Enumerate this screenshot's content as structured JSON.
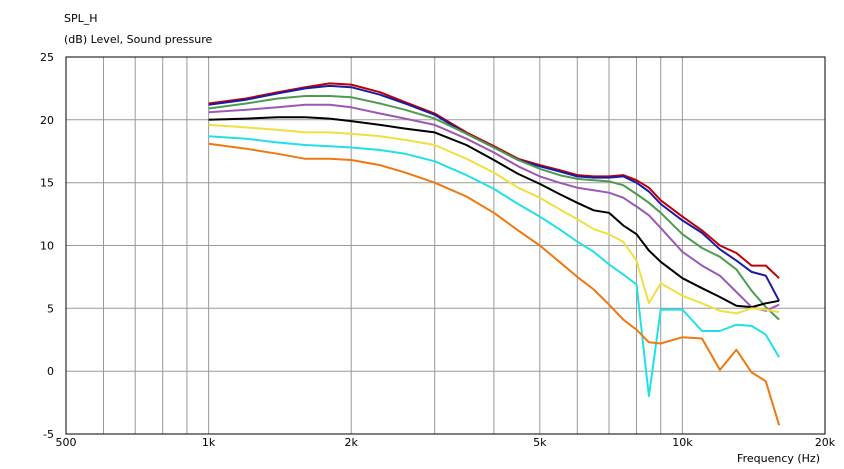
{
  "chart_data": {
    "type": "line",
    "title": "SPL_H",
    "ylabel": "(dB)  Level, Sound pressure",
    "xlabel": "Frequency  (Hz)",
    "x_scale": "log",
    "xlim": [
      500,
      20000
    ],
    "ylim": [
      -5,
      25
    ],
    "grid": true,
    "x_ticks": [
      {
        "value": 500,
        "label": "500"
      },
      {
        "value": 1000,
        "label": "1k"
      },
      {
        "value": 2000,
        "label": "2k"
      },
      {
        "value": 5000,
        "label": "5k"
      },
      {
        "value": 10000,
        "label": "10k"
      },
      {
        "value": 20000,
        "label": "20k"
      }
    ],
    "y_ticks": [
      {
        "value": 25,
        "label": "25"
      },
      {
        "value": 20,
        "label": "20"
      },
      {
        "value": 15,
        "label": "15"
      },
      {
        "value": 10,
        "label": "10"
      },
      {
        "value": 5,
        "label": "5"
      },
      {
        "value": 0,
        "label": "0"
      },
      {
        "value": -5,
        "label": "-5"
      }
    ],
    "series": [
      {
        "color": "#c00000",
        "points": [
          [
            1000,
            21.3
          ],
          [
            1200,
            21.7
          ],
          [
            1400,
            22.2
          ],
          [
            1600,
            22.6
          ],
          [
            1800,
            22.9
          ],
          [
            2000,
            22.8
          ],
          [
            2300,
            22.2
          ],
          [
            2600,
            21.4
          ],
          [
            3000,
            20.5
          ],
          [
            3500,
            19.0
          ],
          [
            4000,
            17.9
          ],
          [
            4500,
            16.9
          ],
          [
            5000,
            16.4
          ],
          [
            5500,
            16.0
          ],
          [
            6000,
            15.6
          ],
          [
            6500,
            15.5
          ],
          [
            7000,
            15.5
          ],
          [
            7500,
            15.6
          ],
          [
            8000,
            15.2
          ],
          [
            8500,
            14.6
          ],
          [
            9000,
            13.6
          ],
          [
            10000,
            12.3
          ],
          [
            11000,
            11.2
          ],
          [
            12000,
            10.0
          ],
          [
            13000,
            9.4
          ],
          [
            14000,
            8.4
          ],
          [
            15000,
            8.4
          ],
          [
            16000,
            7.4
          ]
        ]
      },
      {
        "color": "#1a1aa8",
        "points": [
          [
            1000,
            21.2
          ],
          [
            1200,
            21.6
          ],
          [
            1400,
            22.1
          ],
          [
            1600,
            22.5
          ],
          [
            1800,
            22.7
          ],
          [
            2000,
            22.6
          ],
          [
            2300,
            22.0
          ],
          [
            2600,
            21.3
          ],
          [
            3000,
            20.4
          ],
          [
            3500,
            18.9
          ],
          [
            4000,
            17.8
          ],
          [
            4500,
            16.8
          ],
          [
            5000,
            16.3
          ],
          [
            5500,
            15.9
          ],
          [
            6000,
            15.5
          ],
          [
            6500,
            15.4
          ],
          [
            7000,
            15.4
          ],
          [
            7500,
            15.5
          ],
          [
            8000,
            15.0
          ],
          [
            8500,
            14.3
          ],
          [
            9000,
            13.3
          ],
          [
            10000,
            12.0
          ],
          [
            11000,
            11.0
          ],
          [
            12000,
            9.7
          ],
          [
            13000,
            8.8
          ],
          [
            14000,
            7.9
          ],
          [
            15000,
            7.6
          ],
          [
            16000,
            5.6
          ]
        ]
      },
      {
        "color": "#4e9a4e",
        "points": [
          [
            1000,
            20.9
          ],
          [
            1200,
            21.3
          ],
          [
            1400,
            21.7
          ],
          [
            1600,
            21.9
          ],
          [
            1800,
            21.9
          ],
          [
            2000,
            21.8
          ],
          [
            2300,
            21.3
          ],
          [
            2600,
            20.8
          ],
          [
            3000,
            20.1
          ],
          [
            3500,
            18.9
          ],
          [
            4000,
            17.8
          ],
          [
            4500,
            16.8
          ],
          [
            5000,
            16.1
          ],
          [
            5500,
            15.6
          ],
          [
            6000,
            15.3
          ],
          [
            6500,
            15.2
          ],
          [
            7000,
            15.1
          ],
          [
            7500,
            14.8
          ],
          [
            8000,
            14.1
          ],
          [
            8500,
            13.4
          ],
          [
            9000,
            12.6
          ],
          [
            10000,
            10.9
          ],
          [
            11000,
            9.8
          ],
          [
            12000,
            9.1
          ],
          [
            13000,
            8.1
          ],
          [
            14000,
            6.4
          ],
          [
            15000,
            5.1
          ],
          [
            16000,
            4.1
          ]
        ]
      },
      {
        "color": "#9b59b6",
        "points": [
          [
            1000,
            20.6
          ],
          [
            1200,
            20.8
          ],
          [
            1400,
            21.0
          ],
          [
            1600,
            21.2
          ],
          [
            1800,
            21.2
          ],
          [
            2000,
            21.0
          ],
          [
            2300,
            20.5
          ],
          [
            2600,
            20.1
          ],
          [
            3000,
            19.6
          ],
          [
            3500,
            18.5
          ],
          [
            4000,
            17.4
          ],
          [
            4500,
            16.3
          ],
          [
            5000,
            15.5
          ],
          [
            5500,
            15.0
          ],
          [
            6000,
            14.6
          ],
          [
            6500,
            14.4
          ],
          [
            7000,
            14.2
          ],
          [
            7500,
            13.8
          ],
          [
            8000,
            13.1
          ],
          [
            8500,
            12.4
          ],
          [
            9000,
            11.4
          ],
          [
            10000,
            9.5
          ],
          [
            11000,
            8.4
          ],
          [
            12000,
            7.6
          ],
          [
            13000,
            6.3
          ],
          [
            14000,
            5.1
          ],
          [
            15000,
            4.8
          ],
          [
            16000,
            5.3
          ]
        ]
      },
      {
        "color": "#000000",
        "points": [
          [
            1000,
            20.0
          ],
          [
            1200,
            20.1
          ],
          [
            1400,
            20.2
          ],
          [
            1600,
            20.2
          ],
          [
            1800,
            20.1
          ],
          [
            2000,
            19.9
          ],
          [
            2300,
            19.6
          ],
          [
            2600,
            19.3
          ],
          [
            3000,
            19.0
          ],
          [
            3500,
            18.0
          ],
          [
            4000,
            16.8
          ],
          [
            4500,
            15.7
          ],
          [
            5000,
            14.9
          ],
          [
            5500,
            14.1
          ],
          [
            6000,
            13.4
          ],
          [
            6500,
            12.8
          ],
          [
            7000,
            12.6
          ],
          [
            7500,
            11.6
          ],
          [
            8000,
            10.9
          ],
          [
            8500,
            9.6
          ],
          [
            9000,
            8.7
          ],
          [
            10000,
            7.4
          ],
          [
            11000,
            6.6
          ],
          [
            12000,
            5.9
          ],
          [
            13000,
            5.2
          ],
          [
            14000,
            5.1
          ],
          [
            15000,
            5.4
          ],
          [
            16000,
            5.6
          ]
        ]
      },
      {
        "color": "#f0e040",
        "points": [
          [
            1000,
            19.6
          ],
          [
            1200,
            19.4
          ],
          [
            1400,
            19.2
          ],
          [
            1600,
            19.0
          ],
          [
            1800,
            19.0
          ],
          [
            2000,
            18.9
          ],
          [
            2300,
            18.7
          ],
          [
            2600,
            18.4
          ],
          [
            3000,
            18.0
          ],
          [
            3500,
            16.9
          ],
          [
            4000,
            15.8
          ],
          [
            4500,
            14.6
          ],
          [
            5000,
            13.8
          ],
          [
            5500,
            12.9
          ],
          [
            6000,
            12.1
          ],
          [
            6500,
            11.3
          ],
          [
            7000,
            10.9
          ],
          [
            7500,
            10.3
          ],
          [
            8000,
            8.8
          ],
          [
            8500,
            5.4
          ],
          [
            9000,
            7.0
          ],
          [
            10000,
            6.0
          ],
          [
            11000,
            5.4
          ],
          [
            12000,
            4.8
          ],
          [
            13000,
            4.6
          ],
          [
            14000,
            5.0
          ],
          [
            15000,
            4.9
          ],
          [
            16000,
            4.7
          ]
        ]
      },
      {
        "color": "#22e0e8",
        "points": [
          [
            1000,
            18.7
          ],
          [
            1200,
            18.5
          ],
          [
            1400,
            18.2
          ],
          [
            1600,
            18.0
          ],
          [
            1800,
            17.9
          ],
          [
            2000,
            17.8
          ],
          [
            2300,
            17.6
          ],
          [
            2600,
            17.3
          ],
          [
            3000,
            16.7
          ],
          [
            3500,
            15.6
          ],
          [
            4000,
            14.5
          ],
          [
            4500,
            13.3
          ],
          [
            5000,
            12.3
          ],
          [
            5500,
            11.3
          ],
          [
            6000,
            10.3
          ],
          [
            6500,
            9.5
          ],
          [
            7000,
            8.5
          ],
          [
            7500,
            7.7
          ],
          [
            8000,
            6.9
          ],
          [
            8500,
            -2.0
          ],
          [
            9000,
            4.9
          ],
          [
            10000,
            4.9
          ],
          [
            11000,
            3.2
          ],
          [
            12000,
            3.2
          ],
          [
            13000,
            3.7
          ],
          [
            14000,
            3.6
          ],
          [
            15000,
            2.9
          ],
          [
            16000,
            1.1
          ]
        ]
      },
      {
        "color": "#f07810",
        "points": [
          [
            1000,
            18.1
          ],
          [
            1200,
            17.7
          ],
          [
            1400,
            17.3
          ],
          [
            1600,
            16.9
          ],
          [
            1800,
            16.9
          ],
          [
            2000,
            16.8
          ],
          [
            2300,
            16.4
          ],
          [
            2600,
            15.8
          ],
          [
            3000,
            15.0
          ],
          [
            3500,
            13.9
          ],
          [
            4000,
            12.6
          ],
          [
            4500,
            11.2
          ],
          [
            5000,
            10.0
          ],
          [
            5500,
            8.7
          ],
          [
            6000,
            7.5
          ],
          [
            6500,
            6.5
          ],
          [
            7000,
            5.3
          ],
          [
            7500,
            4.1
          ],
          [
            8000,
            3.3
          ],
          [
            8500,
            2.3
          ],
          [
            9000,
            2.2
          ],
          [
            10000,
            2.7
          ],
          [
            11000,
            2.6
          ],
          [
            12000,
            0.1
          ],
          [
            13000,
            1.7
          ],
          [
            14000,
            -0.1
          ],
          [
            15000,
            -0.8
          ],
          [
            16000,
            -4.3
          ]
        ]
      }
    ]
  }
}
